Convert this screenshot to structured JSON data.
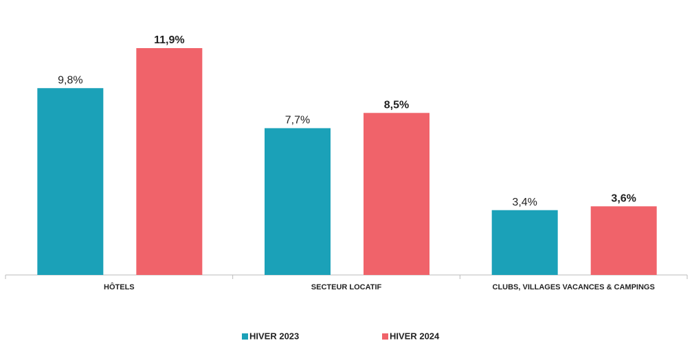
{
  "chart_data": {
    "type": "bar",
    "categories": [
      "HÔTELS",
      "SECTEUR LOCATIF",
      "CLUBS, VILLAGES VACANCES & CAMPINGS"
    ],
    "series": [
      {
        "name": "HIVER 2023",
        "color": "#1ba1b8",
        "values": [
          9.8,
          7.7,
          3.4
        ],
        "value_labels": [
          "9,8%",
          "7,7%",
          "3,4%"
        ]
      },
      {
        "name": "HIVER 2024",
        "color": "#f0636a",
        "values": [
          11.9,
          8.5,
          3.6
        ],
        "value_labels": [
          "11,9%",
          "8,5%",
          "3,6%"
        ]
      }
    ]
  }
}
